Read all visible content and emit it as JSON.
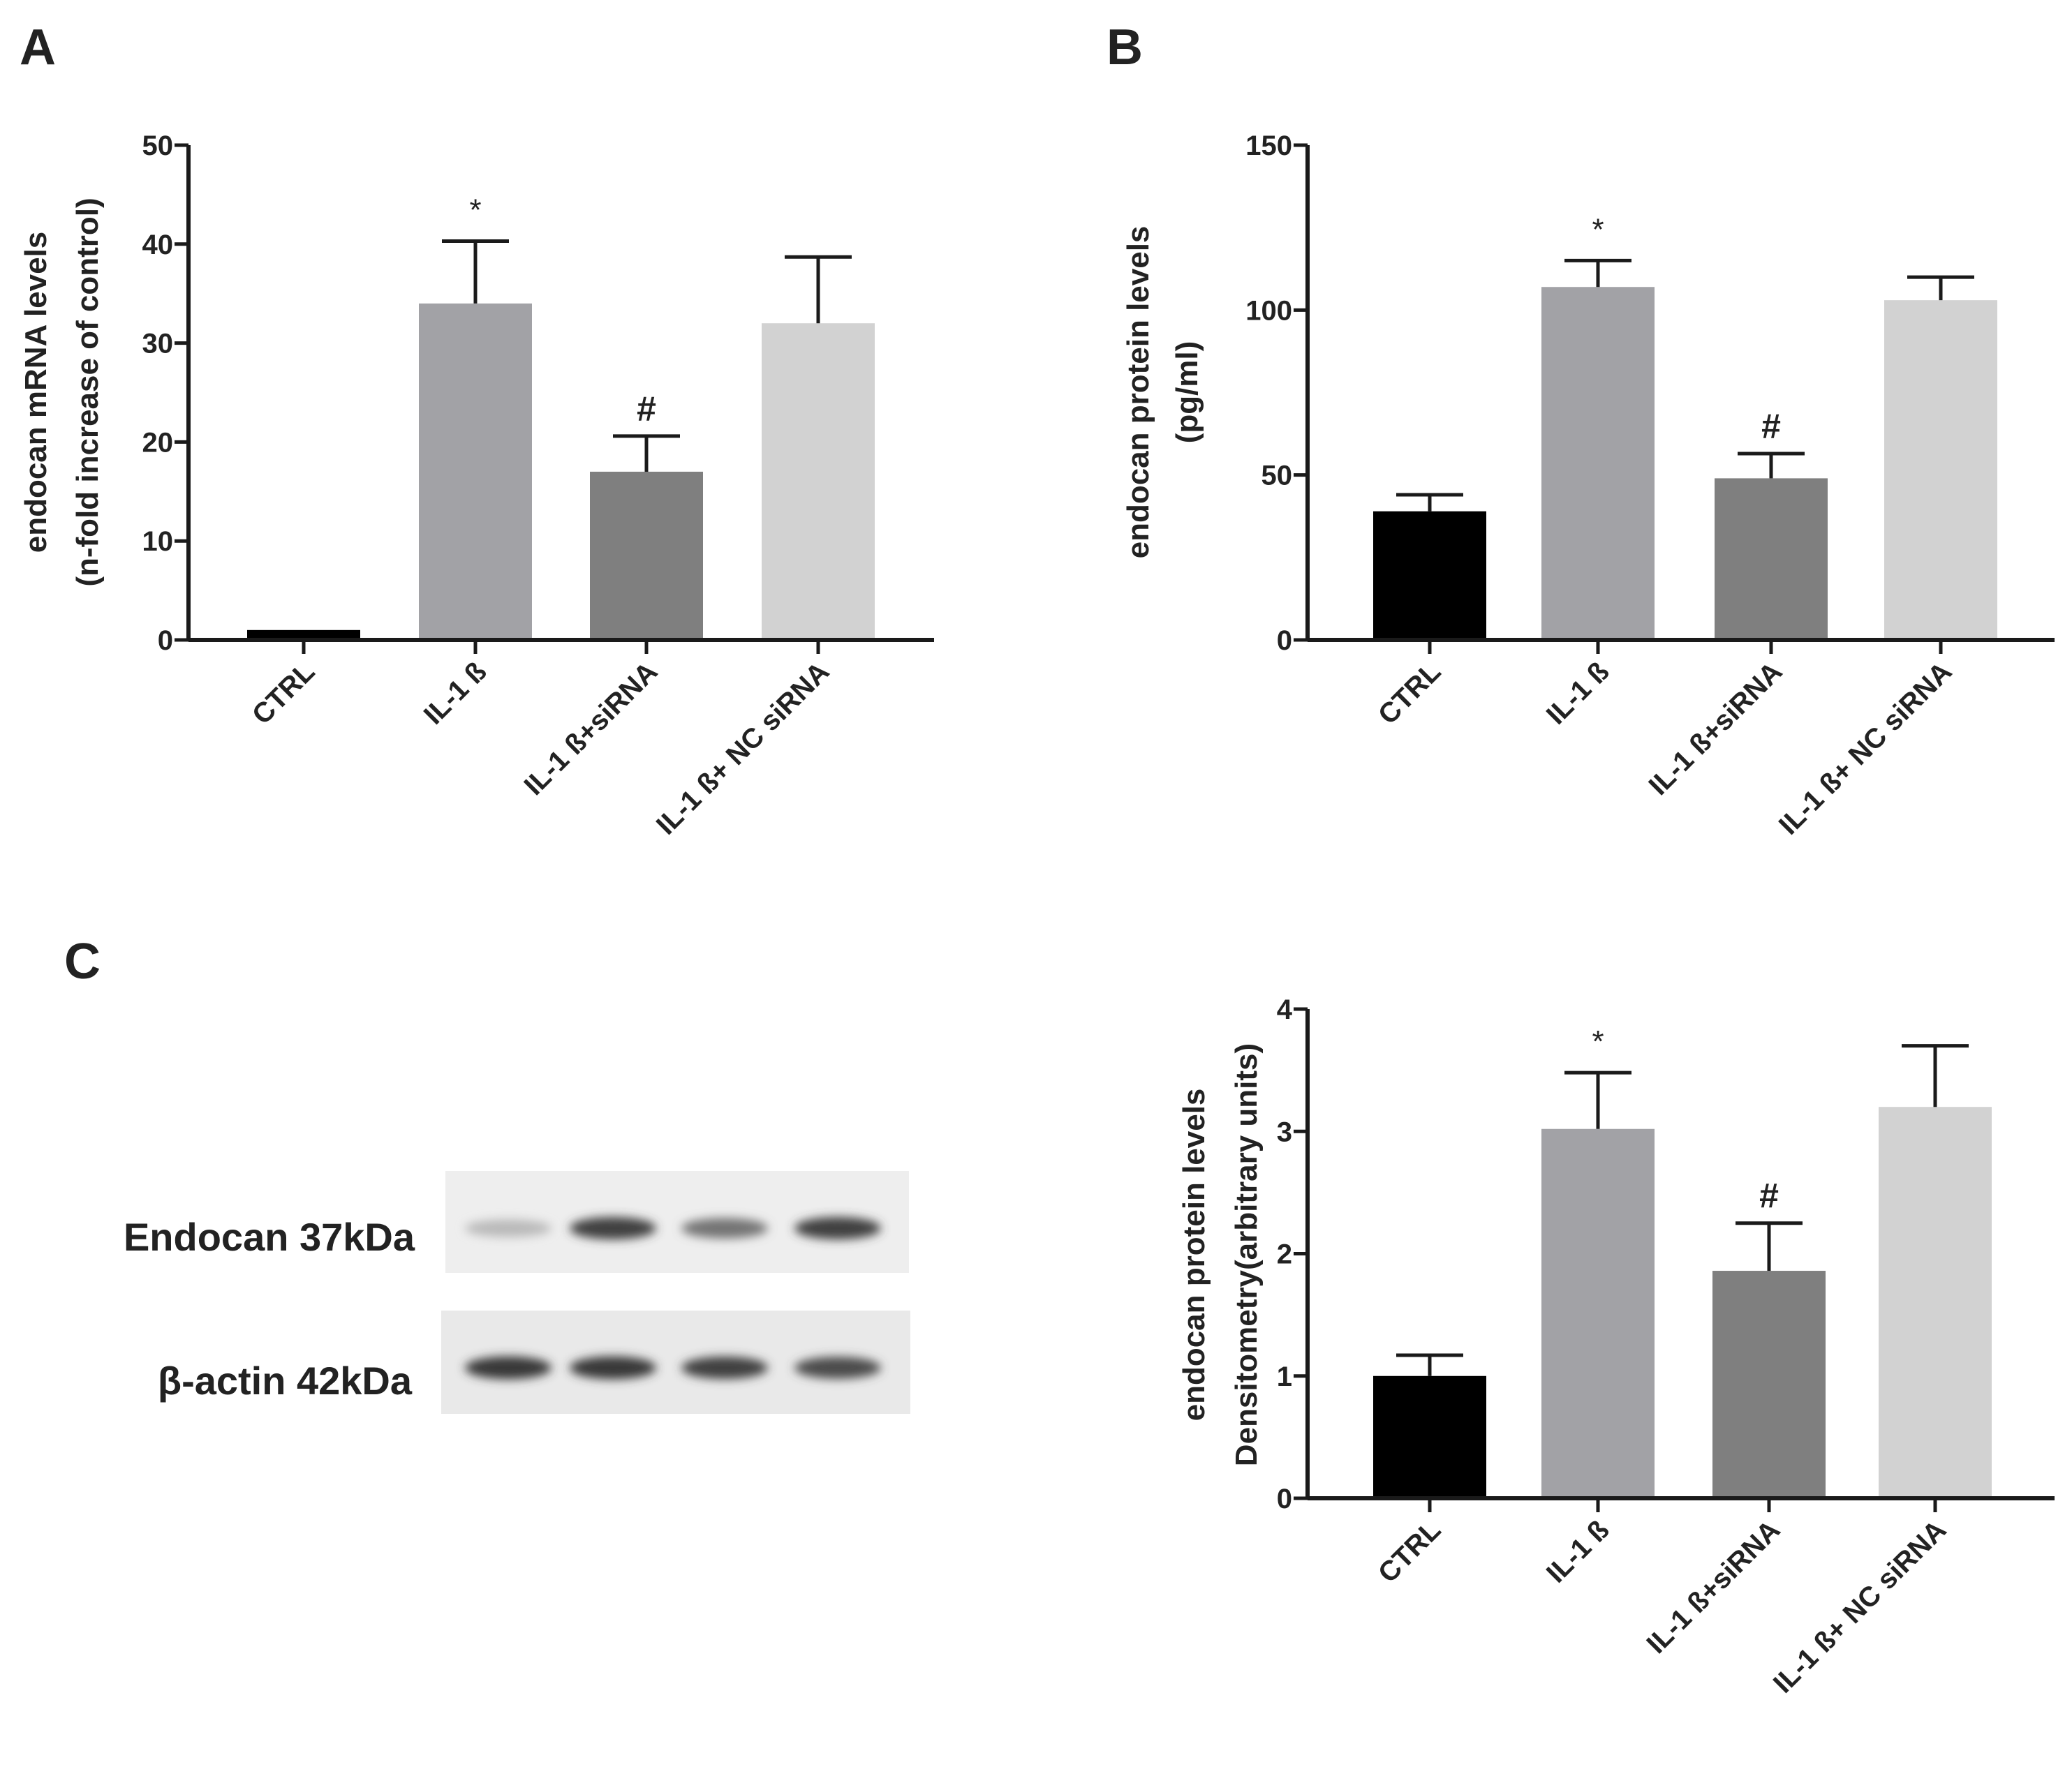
{
  "panels": [
    {
      "letter": "A",
      "chart_data": {
        "type": "bar",
        "categories": [
          "CTRL",
          "IL-1 ß",
          "IL-1 ß+siRNA",
          "IL-1 ß+ NC siRNA"
        ],
        "values": [
          1,
          34,
          17,
          32
        ],
        "errors": [
          0,
          6.3,
          3.6,
          6.7
        ],
        "significance": [
          "",
          "*",
          "#",
          ""
        ],
        "ylabel": [
          "endocan mRNA levels",
          "(n-fold  increase of control)"
        ],
        "ylim": [
          0,
          50
        ],
        "yticks": [
          0,
          10,
          20,
          30,
          40,
          50
        ],
        "bar_colors": [
          "#000000",
          "#a2a2a6",
          "#7f7f7f",
          "#d2d2d2"
        ]
      }
    },
    {
      "letter": "B",
      "chart_data": {
        "type": "bar",
        "categories": [
          "CTRL",
          "IL-1 ß",
          "IL-1 ß+siRNA",
          "IL-1 ß+ NC siRNA"
        ],
        "values": [
          39,
          107,
          49,
          103
        ],
        "errors": [
          5,
          8,
          7.5,
          7
        ],
        "significance": [
          "",
          "*",
          "#",
          ""
        ],
        "ylabel": [
          "endocan protein levels",
          "(pg/ml)"
        ],
        "ylim": [
          0,
          150
        ],
        "yticks": [
          0,
          50,
          100,
          150
        ],
        "bar_colors": [
          "#000000",
          "#a2a2a6",
          "#7f7f7f",
          "#d2d2d2"
        ]
      }
    },
    {
      "letter": "C",
      "chart_data": {
        "type": "bar",
        "categories": [
          "CTRL",
          "IL-1 ß",
          "IL-1 ß+siRNA",
          "IL-1 ß+ NC siRNA"
        ],
        "values": [
          1.0,
          3.02,
          1.86,
          3.2
        ],
        "errors": [
          0.17,
          0.46,
          0.39,
          0.5
        ],
        "significance": [
          "",
          "*",
          "#",
          ""
        ],
        "ylabel": [
          "endocan protein levels",
          "Densitometry(arbitrary units)"
        ],
        "ylim": [
          0,
          4
        ],
        "yticks": [
          0,
          1,
          2,
          3,
          4
        ],
        "bar_colors": [
          "#000000",
          "#a2a2a6",
          "#7f7f7f",
          "#d2d2d2"
        ]
      }
    }
  ],
  "blot": {
    "rows": [
      {
        "label": "Endocan 37kDa",
        "band_intensity": [
          0.25,
          0.85,
          0.6,
          0.85
        ]
      },
      {
        "label": "β-actin 42kDa",
        "band_intensity": [
          0.9,
          0.9,
          0.85,
          0.8
        ]
      }
    ]
  }
}
